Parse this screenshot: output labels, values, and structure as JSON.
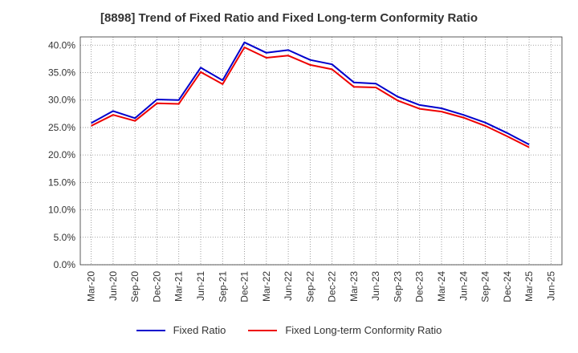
{
  "chart_data": {
    "type": "line",
    "title": "[8898]  Trend of Fixed Ratio and Fixed Long-term Conformity Ratio",
    "xlabel": "",
    "ylabel": "",
    "ylim": [
      0,
      40
    ],
    "y_ticks": [
      "0.0%",
      "5.0%",
      "10.0%",
      "15.0%",
      "20.0%",
      "25.0%",
      "30.0%",
      "35.0%",
      "40.0%"
    ],
    "y_tick_values": [
      0,
      5,
      10,
      15,
      20,
      25,
      30,
      35,
      40
    ],
    "x_ticks": [
      "Mar-20",
      "Jun-20",
      "Sep-20",
      "Dec-20",
      "Mar-21",
      "Jun-21",
      "Sep-21",
      "Dec-21",
      "Mar-22",
      "Jun-22",
      "Sep-22",
      "Dec-22",
      "Mar-23",
      "Jun-23",
      "Sep-23",
      "Dec-23",
      "Mar-24",
      "Jun-24",
      "Sep-24",
      "Dec-24",
      "Mar-25",
      "Jun-25"
    ],
    "x": [
      "Mar-20",
      "Jun-20",
      "Sep-20",
      "Dec-20",
      "Mar-21",
      "Jun-21",
      "Sep-21",
      "Dec-21",
      "Mar-22",
      "Jun-22",
      "Sep-22",
      "Dec-22",
      "Mar-23",
      "Jun-23",
      "Sep-23",
      "Dec-23",
      "Mar-24",
      "Jun-24",
      "Sep-24",
      "Dec-24",
      "Mar-25"
    ],
    "grid": true,
    "legend_position": "bottom",
    "series": [
      {
        "name": "Fixed Ratio",
        "color": "#0000cc",
        "values": [
          25.8,
          28.0,
          26.7,
          30.1,
          30.0,
          35.9,
          33.6,
          40.5,
          38.6,
          39.1,
          37.3,
          36.5,
          33.2,
          33.0,
          30.6,
          29.1,
          28.5,
          27.3,
          25.9,
          24.0,
          21.9
        ]
      },
      {
        "name": "Fixed Long-term Conformity Ratio",
        "color": "#ee0000",
        "values": [
          25.3,
          27.3,
          26.2,
          29.4,
          29.3,
          35.1,
          32.9,
          39.6,
          37.7,
          38.1,
          36.4,
          35.6,
          32.4,
          32.3,
          29.9,
          28.4,
          27.9,
          26.8,
          25.3,
          23.4,
          21.4
        ]
      }
    ]
  }
}
